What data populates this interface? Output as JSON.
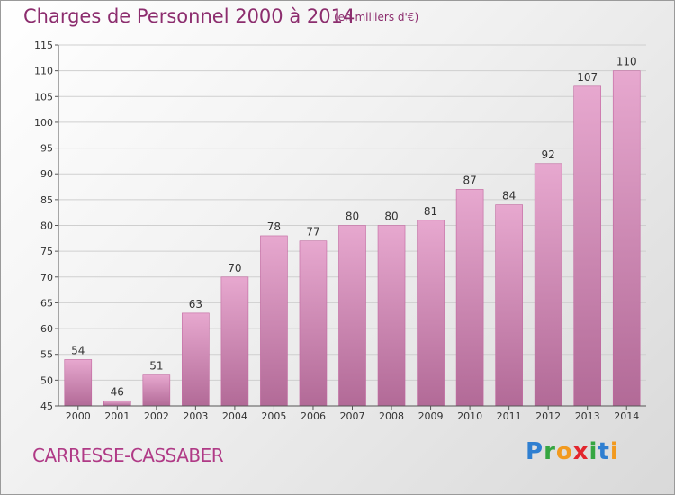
{
  "header": {
    "title": "Charges de Personnel 2000 à 2014",
    "subtitle": "(en milliers d'€)"
  },
  "footer": {
    "commune": "CARRESSE-CASSABER",
    "logo_letters": [
      "P",
      "r",
      "o",
      "x",
      "i",
      "t",
      "i"
    ]
  },
  "chart_data": {
    "type": "bar",
    "title": "Charges de Personnel 2000 à 2014",
    "subtitle": "(en milliers d'€)",
    "categories": [
      "2000",
      "2001",
      "2002",
      "2003",
      "2004",
      "2005",
      "2006",
      "2007",
      "2008",
      "2009",
      "2010",
      "2011",
      "2012",
      "2013",
      "2014"
    ],
    "values": [
      54,
      46,
      51,
      63,
      70,
      78,
      77,
      80,
      80,
      81,
      87,
      84,
      92,
      107,
      110
    ],
    "ylim": [
      45,
      115
    ],
    "yticks": [
      45,
      50,
      55,
      60,
      65,
      70,
      75,
      80,
      85,
      90,
      95,
      100,
      105,
      110,
      115
    ],
    "grid": true,
    "colors": {
      "bar_top": "#e7a8cf",
      "bar_bottom": "#b26a97",
      "bar_edge": "#c1669f",
      "grid": "#cfcfcf"
    }
  }
}
